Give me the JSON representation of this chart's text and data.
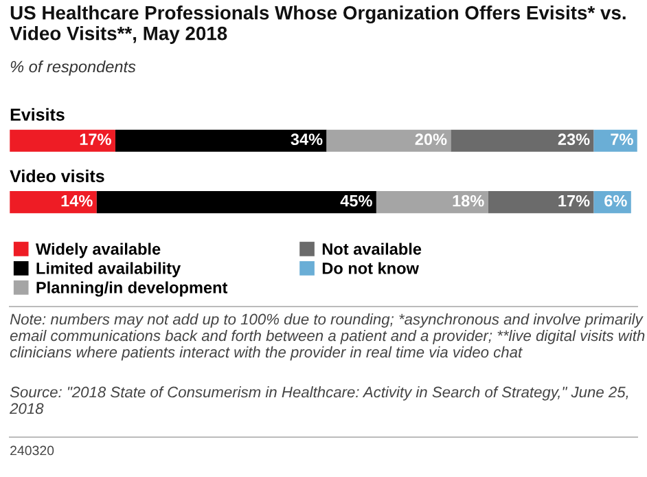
{
  "chart_data": {
    "type": "bar",
    "orientation": "horizontal",
    "stacked": true,
    "title": "US Healthcare Professionals Whose Organization Offers Evisits* vs. Video Visits**, May 2018",
    "subtitle": "% of respondents",
    "categories": [
      "Evisits",
      "Video visits"
    ],
    "series": [
      {
        "name": "Widely available",
        "color": "#ee1c25",
        "values": [
          17,
          14
        ],
        "value_labels": [
          "17%",
          "14%"
        ]
      },
      {
        "name": "Limited availability",
        "color": "#000000",
        "values": [
          34,
          45
        ],
        "value_labels": [
          "34%",
          "45%"
        ]
      },
      {
        "name": "Planning/in development",
        "color": "#a5a5a5",
        "values": [
          20,
          18
        ],
        "value_labels": [
          "20%",
          "18%"
        ]
      },
      {
        "name": "Not available",
        "color": "#6b6b6b",
        "values": [
          23,
          17
        ],
        "value_labels": [
          "23%",
          "17%"
        ]
      },
      {
        "name": "Do not know",
        "color": "#6aaed6",
        "values": [
          7,
          6
        ],
        "value_labels": [
          "7%",
          "6%"
        ]
      }
    ],
    "legend": "bottom",
    "annotations": [
      "Note: numbers may not add up to 100% due to rounding; *asynchronous and involve primarily email communications back and forth between a patient and a provider; **live digital visits with clinicians where patients interact with the provider in real time via video chat",
      "Source: \"2018 State of Consumerism in Healthcare: Activity in Search of Strategy,\" June 25, 2018",
      "240320"
    ]
  }
}
